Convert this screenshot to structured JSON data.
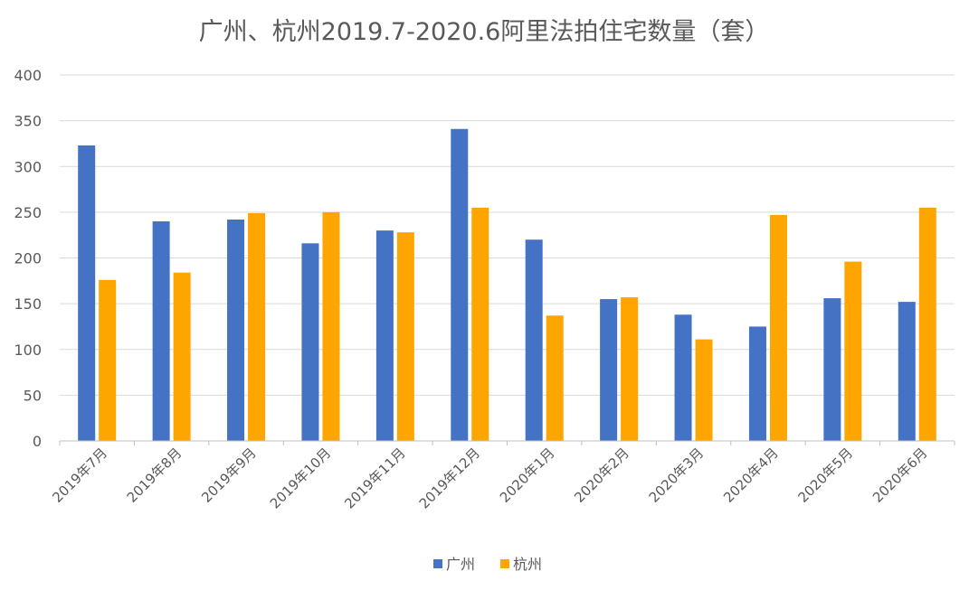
{
  "chart_data": {
    "type": "bar",
    "title": "广州、杭州2019.7-2020.6阿里法拍住宅数量（套）",
    "xlabel": "",
    "ylabel": "",
    "ylim": [
      0,
      400
    ],
    "yticks": [
      0,
      50,
      100,
      150,
      200,
      250,
      300,
      350,
      400
    ],
    "grid": true,
    "legend_position": "bottom",
    "categories": [
      "2019年7月",
      "2019年8月",
      "2019年9月",
      "2019年10月",
      "2019年11月",
      "2019年12月",
      "2020年1月",
      "2020年2月",
      "2020年3月",
      "2020年4月",
      "2020年5月",
      "2020年6月"
    ],
    "series": [
      {
        "name": "广州",
        "color": "#4472C4",
        "values": [
          323,
          240,
          242,
          216,
          230,
          341,
          220,
          155,
          138,
          125,
          156,
          152
        ]
      },
      {
        "name": "杭州",
        "color": "#FFA500",
        "values": [
          176,
          184,
          249,
          250,
          228,
          255,
          137,
          157,
          111,
          247,
          196,
          255
        ]
      }
    ]
  }
}
